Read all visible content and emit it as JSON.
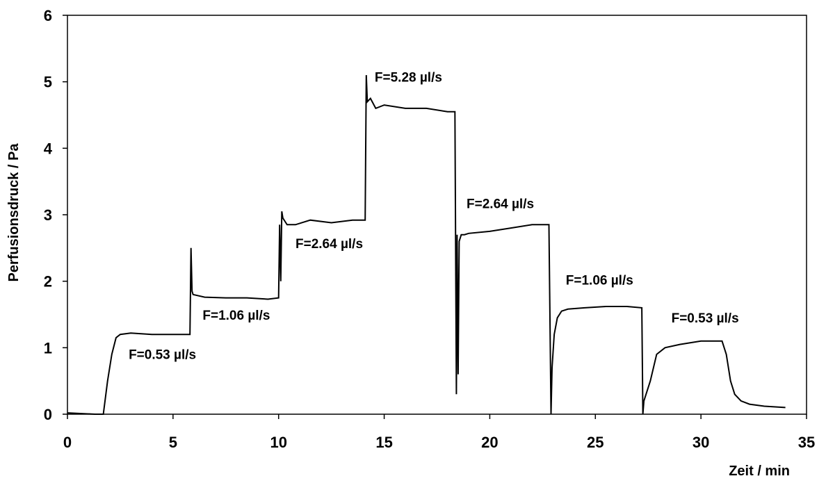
{
  "chart_data": {
    "type": "line",
    "title": "",
    "xlabel": "Zeit / min",
    "ylabel": "Perfusionsdruck / Pa",
    "xlim": [
      0,
      35
    ],
    "ylim": [
      0,
      6
    ],
    "xticks": [
      "0",
      "5",
      "10",
      "15",
      "20",
      "25",
      "30",
      "35"
    ],
    "yticks": [
      "0",
      "1",
      "2",
      "3",
      "4",
      "5",
      "6"
    ],
    "grid": false,
    "legend": "none",
    "line_color": "#000000",
    "series": [
      {
        "x": [
          0,
          1.3,
          1.7,
          1.9,
          2.1,
          2.3,
          2.5,
          3.0,
          4.0,
          5.0,
          5.8,
          5.85,
          5.9,
          5.95,
          6.5,
          7.5,
          8.5,
          9.5,
          10.0,
          10.05,
          10.1,
          10.15,
          10.2,
          10.4,
          10.8,
          11.5,
          12.5,
          13.5,
          14.1,
          14.15,
          14.2,
          14.35,
          14.6,
          15.0,
          16.0,
          17.0,
          18.0,
          18.35,
          18.42,
          18.45,
          18.5,
          18.55,
          18.65,
          18.8,
          19.0,
          20.0,
          21.0,
          22.0,
          22.8,
          22.9,
          22.95,
          23.05,
          23.2,
          23.4,
          23.7,
          24.5,
          25.5,
          26.5,
          27.2,
          27.25,
          27.3,
          27.6,
          27.9,
          28.3,
          29.0,
          30.0,
          31.0,
          31.2,
          31.4,
          31.6,
          31.9,
          32.3,
          33.0,
          34.0
        ],
        "y": [
          0.02,
          0.0,
          0.0,
          0.5,
          0.9,
          1.15,
          1.2,
          1.22,
          1.2,
          1.2,
          1.2,
          2.5,
          1.85,
          1.8,
          1.76,
          1.75,
          1.75,
          1.73,
          1.75,
          2.85,
          2.0,
          3.05,
          2.95,
          2.85,
          2.85,
          2.92,
          2.88,
          2.92,
          2.92,
          5.1,
          4.7,
          4.75,
          4.6,
          4.65,
          4.6,
          4.6,
          4.55,
          4.55,
          0.3,
          2.7,
          0.6,
          2.6,
          2.7,
          2.7,
          2.72,
          2.75,
          2.8,
          2.85,
          2.85,
          0.0,
          0.7,
          1.2,
          1.45,
          1.55,
          1.58,
          1.6,
          1.62,
          1.62,
          1.6,
          0.0,
          0.2,
          0.5,
          0.9,
          1.0,
          1.05,
          1.1,
          1.1,
          0.9,
          0.5,
          0.3,
          0.2,
          0.15,
          0.12,
          0.1
        ]
      }
    ],
    "annotations": [
      {
        "text": "F=0.53 µl/s",
        "x": 2.9,
        "y": 0.83
      },
      {
        "text": "F=1.06 µl/s",
        "x": 6.4,
        "y": 1.42
      },
      {
        "text": "F=2.64 µl/s",
        "x": 10.8,
        "y": 2.5
      },
      {
        "text": "F=5.28 µl/s",
        "x": 14.55,
        "y": 5.0
      },
      {
        "text": "F=2.64 µl/s",
        "x": 18.9,
        "y": 3.1
      },
      {
        "text": "F=1.06 µl/s",
        "x": 23.6,
        "y": 1.95
      },
      {
        "text": "F=0.53 µl/s",
        "x": 28.6,
        "y": 1.38
      }
    ]
  }
}
